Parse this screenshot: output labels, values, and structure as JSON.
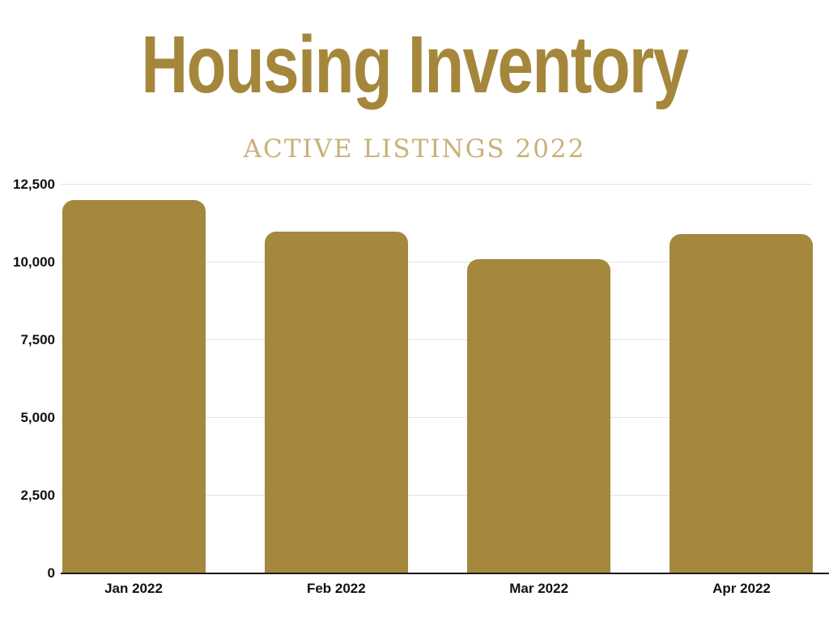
{
  "page": {
    "background_color": "#ffffff"
  },
  "header": {
    "title": "Housing Inventory",
    "subtitle": "ACTIVE LISTINGS 2022",
    "title_color": "#a5873b",
    "subtitle_color": "#c9b179"
  },
  "chart_data": {
    "type": "bar",
    "title": "Housing Inventory",
    "subtitle": "ACTIVE LISTINGS 2022",
    "categories": [
      "Jan 2022",
      "Feb 2022",
      "Mar 2022",
      "Apr 2022"
    ],
    "values": [
      12000,
      11000,
      10100,
      10900
    ],
    "xlabel": "",
    "ylabel": "",
    "ylim": [
      0,
      12500
    ],
    "ytick_interval": 2500,
    "yticks": [
      {
        "value": 0,
        "label": "0"
      },
      {
        "value": 2500,
        "label": "2,500"
      },
      {
        "value": 5000,
        "label": "5,000"
      },
      {
        "value": 7500,
        "label": "7,500"
      },
      {
        "value": 10000,
        "label": "10,000"
      },
      {
        "value": 12500,
        "label": "12,500"
      }
    ],
    "grid": true,
    "legend": false,
    "bar_color": "#a5883e",
    "gridline_color": "#e3e3e3",
    "axis_line_color": "#1a1a1a",
    "tick_label_color": "#111111"
  }
}
